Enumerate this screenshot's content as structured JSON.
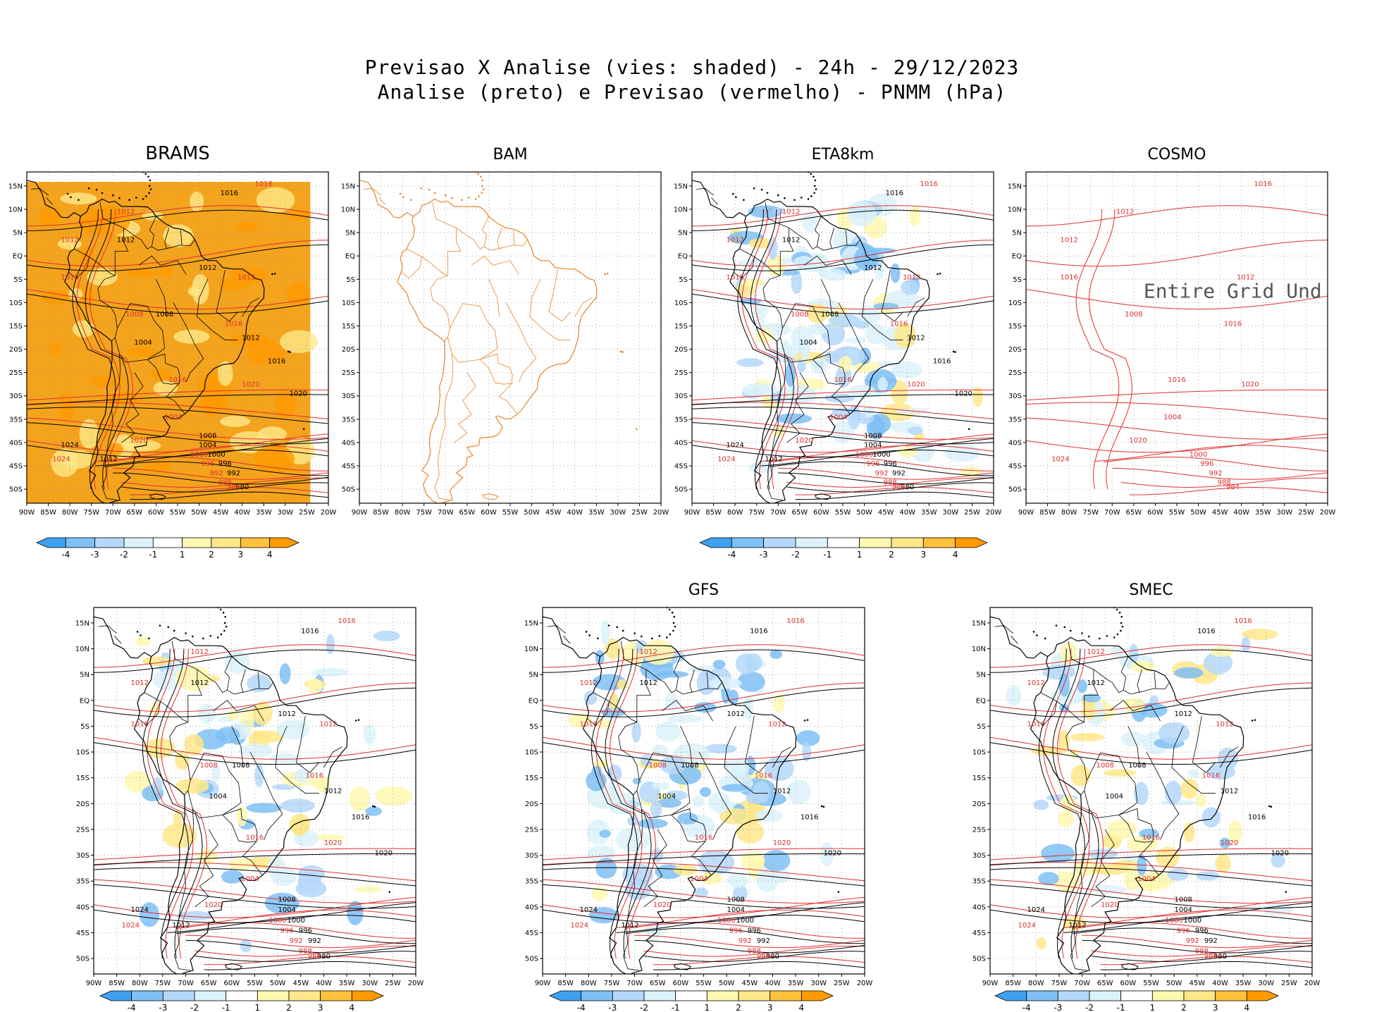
{
  "title": {
    "line1": "Previsao X Analise (vies: shaded) - 24h - 29/12/2023",
    "line2": "Analise (preto) e Previsao (vermelho) - PNMM (hPa)"
  },
  "axes": {
    "lat_labels": [
      "15N",
      "10N",
      "5N",
      "EQ",
      "5S",
      "10S",
      "15S",
      "20S",
      "25S",
      "30S",
      "35S",
      "40S",
      "45S",
      "50S"
    ],
    "lon_labels": [
      "90W",
      "85W",
      "80W",
      "75W",
      "70W",
      "65W",
      "60W",
      "55W",
      "50W",
      "45W",
      "40W",
      "35W",
      "30W",
      "25W",
      "20W"
    ]
  },
  "legend": {
    "tick_labels": [
      "-4",
      "-3",
      "-2",
      "-1",
      "1",
      "2",
      "3",
      "4"
    ],
    "colors": [
      "#3fa0f0",
      "#7fc0f5",
      "#b5d8fa",
      "#dcf2fb",
      "#ffffff",
      "#fff8b0",
      "#ffe88a",
      "#ffc23a",
      "#ff9a00"
    ]
  },
  "colors": {
    "analysis": "#000000",
    "forecast": "#e03030",
    "coast_bam": "#e6842a",
    "brams_fill": "#f4a31c"
  },
  "panels": [
    {
      "id": "brams",
      "label": "BRAMS",
      "bias": "strong-positive",
      "colorbar": true
    },
    {
      "id": "bam",
      "label": "BAM",
      "bias": "none",
      "colorbar": false
    },
    {
      "id": "eta8km",
      "label": "ETA8km",
      "bias": "mixed-negative",
      "colorbar": true
    },
    {
      "id": "cosmo",
      "label": "COSMO",
      "bias": "none",
      "colorbar": false,
      "note": "Entire Grid Und"
    },
    {
      "id": "wrf",
      "label": "",
      "bias": "mixed",
      "colorbar": true
    },
    {
      "id": "gfs",
      "label": "GFS",
      "bias": "mixed-negative",
      "colorbar": true
    },
    {
      "id": "smec",
      "label": "SMEC",
      "bias": "mixed",
      "colorbar": true
    }
  ],
  "isobars": {
    "analysis": [
      {
        "text": "1016",
        "lon": -43,
        "lat": 13
      },
      {
        "text": "1012",
        "lon": -67,
        "lat": 3
      },
      {
        "text": "1012",
        "lon": -48,
        "lat": -3
      },
      {
        "text": "1008",
        "lon": -58,
        "lat": -13
      },
      {
        "text": "1004",
        "lon": -63,
        "lat": -19
      },
      {
        "text": "1012",
        "lon": -38,
        "lat": -18
      },
      {
        "text": "1016",
        "lon": -32,
        "lat": -23
      },
      {
        "text": "1020",
        "lon": -27,
        "lat": -30
      },
      {
        "text": "1008",
        "lon": -48,
        "lat": -39
      },
      {
        "text": "1004",
        "lon": -48,
        "lat": -41
      },
      {
        "text": "1000",
        "lon": -46,
        "lat": -43
      },
      {
        "text": "996",
        "lon": -44,
        "lat": -45
      },
      {
        "text": "992",
        "lon": -42,
        "lat": -47
      },
      {
        "text": "980",
        "lon": -40,
        "lat": -50
      },
      {
        "text": "1024",
        "lon": -80,
        "lat": -41
      },
      {
        "text": "1012",
        "lon": -71,
        "lat": -44
      }
    ],
    "forecast": [
      {
        "text": "1016",
        "lon": -35,
        "lat": 15
      },
      {
        "text": "1012",
        "lon": -67,
        "lat": 9
      },
      {
        "text": "1012",
        "lon": -39,
        "lat": -5
      },
      {
        "text": "1012",
        "lon": -80,
        "lat": 3
      },
      {
        "text": "1016",
        "lon": -80,
        "lat": -5
      },
      {
        "text": "1008",
        "lon": -65,
        "lat": -13
      },
      {
        "text": "1016",
        "lon": -42,
        "lat": -15
      },
      {
        "text": "1016",
        "lon": -55,
        "lat": -27
      },
      {
        "text": "1020",
        "lon": -38,
        "lat": -28
      },
      {
        "text": "1004",
        "lon": -56,
        "lat": -35
      },
      {
        "text": "1000",
        "lon": -50,
        "lat": -43
      },
      {
        "text": "996",
        "lon": -48,
        "lat": -45
      },
      {
        "text": "992",
        "lon": -46,
        "lat": -47
      },
      {
        "text": "988",
        "lon": -44,
        "lat": -49
      },
      {
        "text": "984",
        "lon": -42,
        "lat": -50
      },
      {
        "text": "1024",
        "lon": -82,
        "lat": -44
      },
      {
        "text": "1020",
        "lon": -64,
        "lat": -40
      }
    ]
  }
}
